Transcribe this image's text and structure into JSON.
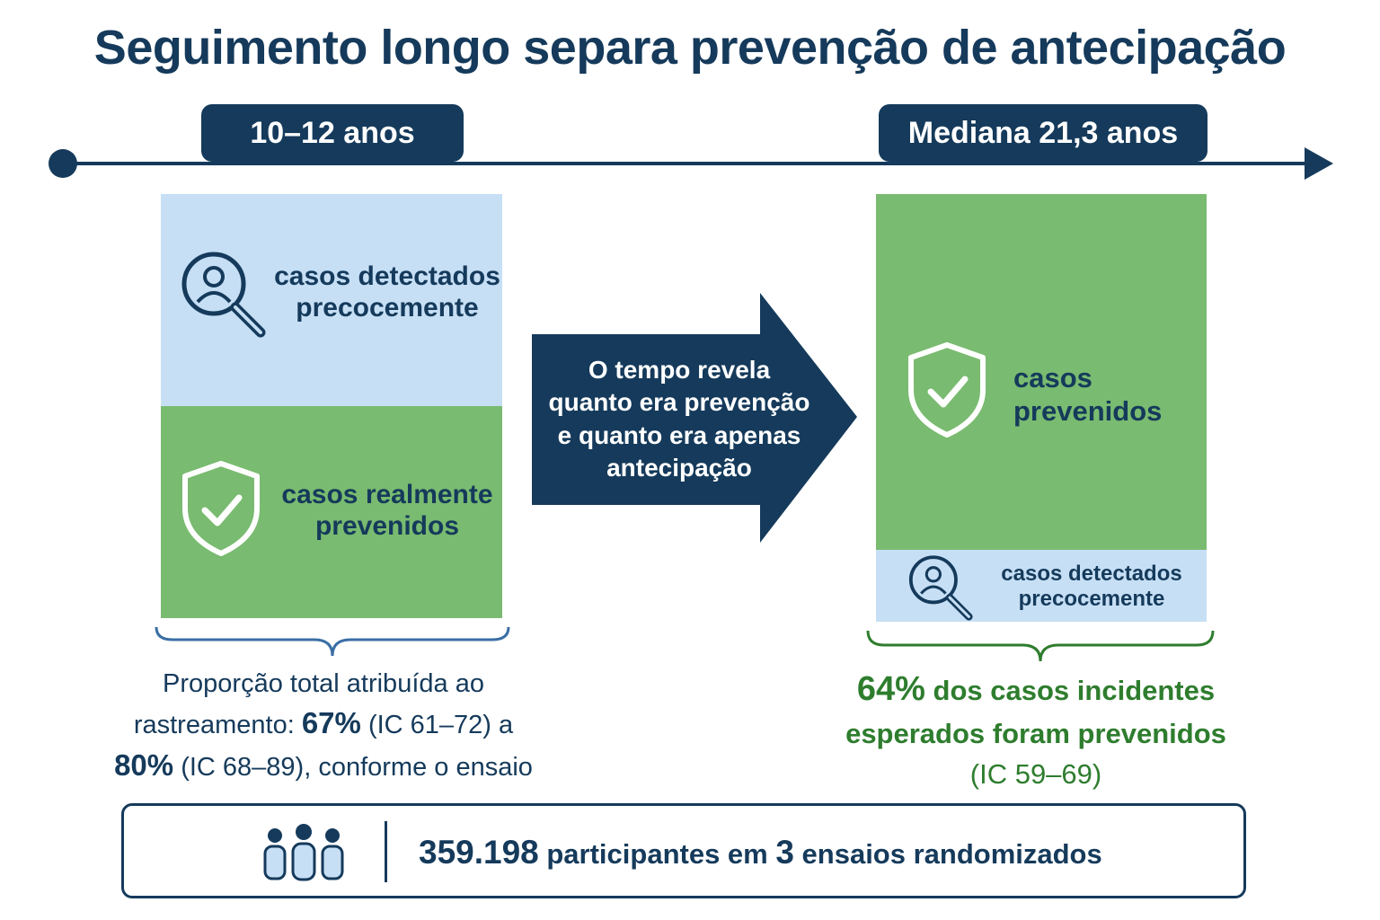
{
  "title": "Seguimento longo separa prevenção de antecipação",
  "colors": {
    "navy": "#153a5b",
    "light_blue": "#c6dff5",
    "green": "#79bb70",
    "dark_green_text": "#2e7d2e"
  },
  "timeline": {
    "left_pill": "10–12 anos",
    "right_pill": "Mediana 21,3 anos"
  },
  "left_panel": {
    "top_label_line1": "casos detectados",
    "top_label_line2": "precocemente",
    "top_icon": "magnifier-person-icon",
    "bottom_label_line1": "casos realmente",
    "bottom_label_line2": "prevenidos",
    "bottom_icon": "shield-check-icon"
  },
  "middle_arrow": {
    "line1": "O tempo revela",
    "line2": "quanto era prevenção",
    "line3": "e quanto era apenas",
    "line4": "antecipação"
  },
  "right_panel": {
    "top_label_line1": "casos",
    "top_label_line2": "prevenidos",
    "top_icon": "shield-check-icon",
    "bottom_label_line1": "casos detectados",
    "bottom_label_line2": "precocemente",
    "bottom_icon": "magnifier-person-icon"
  },
  "left_caption": {
    "line1": "Proporção total atribuída ao",
    "line2_prefix": "rastreamento: ",
    "value1": "67%",
    "ci1": " (IC 61–72) a",
    "value2": "80%",
    "ci2": " (IC 68–89), conforme o ensaio"
  },
  "right_caption": {
    "value": "64%",
    "line1_rest": " dos casos incidentes",
    "line2": "esperados foram prevenidos",
    "line3": "(IC 59–69)"
  },
  "footer": {
    "icon": "people-group-icon",
    "count": "359.198",
    "mid": " participantes em ",
    "trials": "3",
    "rest": " ensaios randomizados"
  }
}
